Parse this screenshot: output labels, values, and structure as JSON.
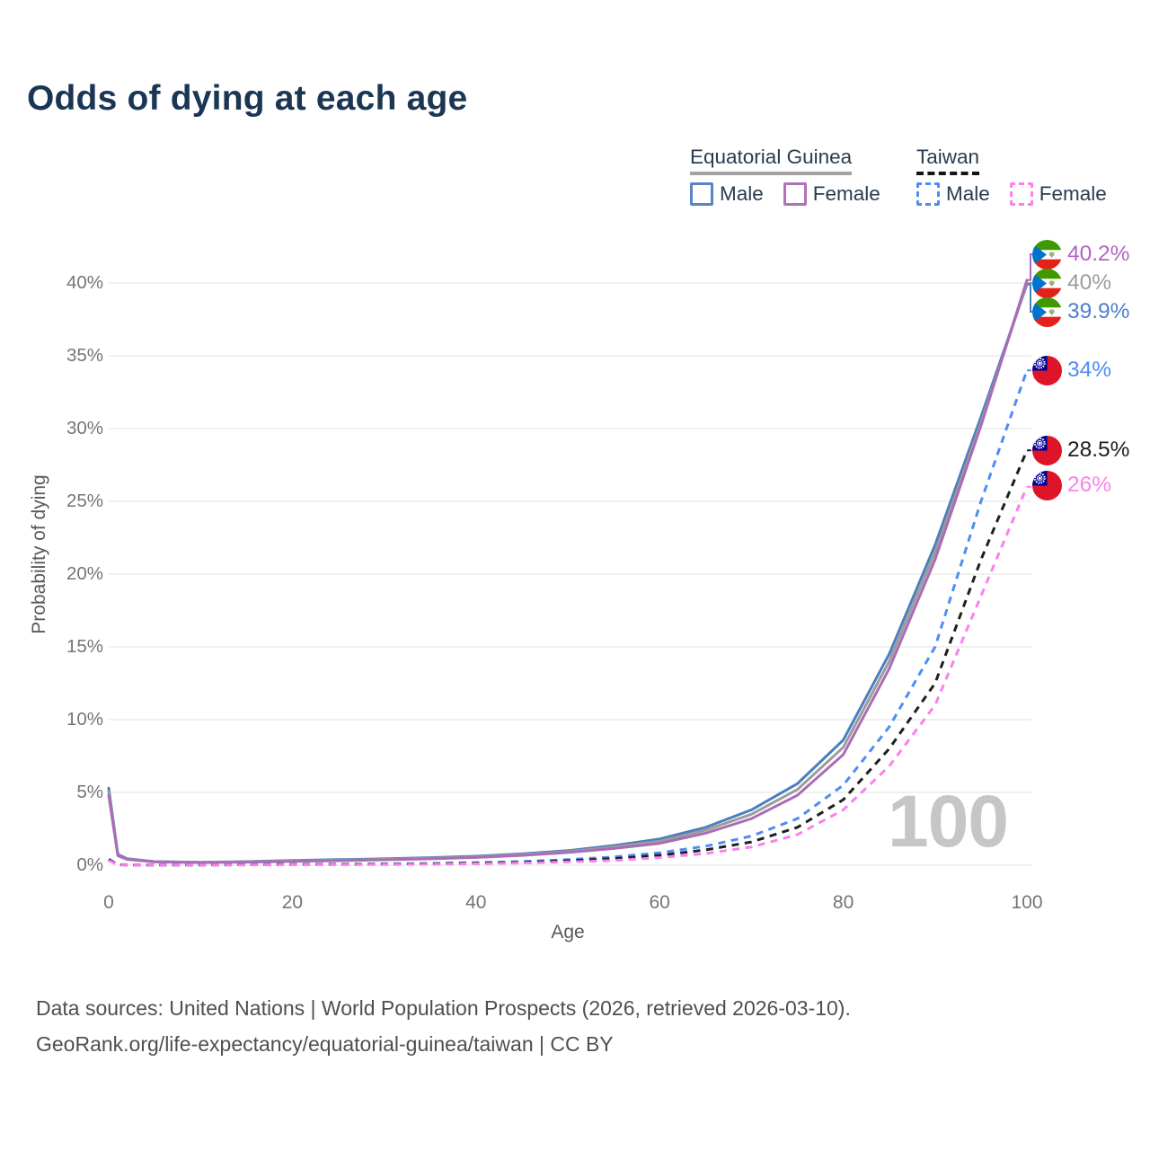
{
  "header": {
    "title": "Odds of dying at each age"
  },
  "legend": {
    "groups": [
      {
        "name": "Equatorial Guinea",
        "line_style": "solid",
        "underline_color": "#a2a2a2",
        "items": [
          {
            "label": "Male",
            "color": "#4a7ebe"
          },
          {
            "label": "Female",
            "color": "#ab6cb6"
          }
        ]
      },
      {
        "name": "Taiwan",
        "line_style": "dashed",
        "underline_color": "#141414",
        "items": [
          {
            "label": "Male",
            "color": "#4f8df2"
          },
          {
            "label": "Female",
            "color": "#fb80ee"
          }
        ]
      }
    ]
  },
  "chart_data": {
    "type": "line",
    "title": "Odds of dying at each age",
    "xlabel": "Age",
    "ylabel": "Probability of dying",
    "x_ticks": [
      "0",
      "20",
      "40",
      "60",
      "80",
      "100"
    ],
    "x_tick_values": [
      0,
      20,
      40,
      60,
      80,
      100
    ],
    "y_ticks": [
      "0%",
      "5%",
      "10%",
      "15%",
      "20%",
      "25%",
      "30%",
      "35%",
      "40%"
    ],
    "y_tick_values_pct": [
      0,
      5,
      10,
      15,
      20,
      25,
      30,
      35,
      40
    ],
    "xlim": [
      0,
      100
    ],
    "ylim_pct": [
      0,
      42
    ],
    "grid": "horizontal",
    "legend_position": "top-right",
    "hover_age_watermark": "100",
    "ages": [
      0,
      1,
      2,
      5,
      10,
      15,
      20,
      25,
      30,
      35,
      40,
      45,
      50,
      55,
      60,
      65,
      70,
      75,
      80,
      85,
      90,
      95,
      100
    ],
    "series": [
      {
        "key": "gq-male",
        "name": "Equatorial Guinea Male",
        "color": "#4a7ebe",
        "dashed": false,
        "values_pct": [
          5.3,
          0.75,
          0.45,
          0.25,
          0.2,
          0.25,
          0.32,
          0.38,
          0.44,
          0.52,
          0.62,
          0.78,
          1.0,
          1.35,
          1.8,
          2.6,
          3.8,
          5.6,
          8.6,
          14.5,
          22,
          30.8,
          39.9
        ]
      },
      {
        "key": "gq-both",
        "name": "Equatorial Guinea Both sexes",
        "color": "#9c9c9c",
        "dashed": false,
        "values_pct": [
          5.05,
          0.7,
          0.42,
          0.24,
          0.19,
          0.23,
          0.29,
          0.34,
          0.4,
          0.48,
          0.57,
          0.72,
          0.93,
          1.25,
          1.65,
          2.4,
          3.5,
          5.2,
          8.1,
          14,
          21.5,
          30.4,
          40
        ]
      },
      {
        "key": "gq-female",
        "name": "Equatorial Guinea Female",
        "color": "#ab6cb6",
        "dashed": false,
        "values_pct": [
          4.8,
          0.65,
          0.4,
          0.22,
          0.18,
          0.21,
          0.26,
          0.31,
          0.37,
          0.44,
          0.53,
          0.67,
          0.87,
          1.15,
          1.5,
          2.2,
          3.2,
          4.8,
          7.6,
          13.5,
          21,
          30.2,
          40.2
        ]
      },
      {
        "key": "tw-male",
        "name": "Taiwan Male",
        "color": "#4f8df2",
        "dashed": true,
        "values_pct": [
          0.42,
          0.03,
          0.02,
          0.015,
          0.015,
          0.04,
          0.06,
          0.07,
          0.09,
          0.12,
          0.17,
          0.25,
          0.38,
          0.57,
          0.85,
          1.3,
          2.0,
          3.2,
          5.5,
          9.5,
          15,
          25,
          34
        ]
      },
      {
        "key": "tw-both",
        "name": "Taiwan Both sexes",
        "color": "#1f1f1f",
        "dashed": true,
        "values_pct": [
          0.38,
          0.03,
          0.02,
          0.012,
          0.012,
          0.03,
          0.05,
          0.06,
          0.07,
          0.1,
          0.14,
          0.2,
          0.3,
          0.45,
          0.68,
          1.05,
          1.6,
          2.6,
          4.5,
          8,
          12.5,
          21,
          28.5
        ]
      },
      {
        "key": "tw-female",
        "name": "Taiwan Female",
        "color": "#fb80ee",
        "dashed": true,
        "values_pct": [
          0.33,
          0.02,
          0.015,
          0.01,
          0.01,
          0.02,
          0.03,
          0.04,
          0.05,
          0.07,
          0.1,
          0.15,
          0.22,
          0.33,
          0.52,
          0.8,
          1.25,
          2.1,
          3.8,
          6.8,
          11,
          18.5,
          26
        ]
      }
    ],
    "end_labels": [
      {
        "series": "gq-female",
        "text": "40.2%",
        "color": "#b164c4",
        "flag": "equatorial-guinea"
      },
      {
        "series": "gq-both",
        "text": "40%",
        "color": "#9c9c9c",
        "flag": "equatorial-guinea"
      },
      {
        "series": "gq-male",
        "text": "39.9%",
        "color": "#4d7fd2",
        "flag": "equatorial-guinea"
      },
      {
        "series": "tw-male",
        "text": "34%",
        "color": "#4f8df2",
        "flag": "taiwan"
      },
      {
        "series": "tw-both",
        "text": "28.5%",
        "color": "#1f1f1f",
        "flag": "taiwan"
      },
      {
        "series": "tw-female",
        "text": "26%",
        "color": "#fb80ee",
        "flag": "taiwan"
      }
    ],
    "gridline_color": "#ebebeb"
  },
  "footer": {
    "line1": "Data sources: United Nations | World Population Prospects (2026, retrieved 2026-03-10).",
    "line2": "GeoRank.org/life-expectancy/equatorial-guinea/taiwan | CC BY"
  }
}
